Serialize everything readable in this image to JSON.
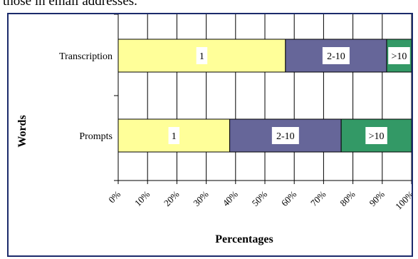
{
  "top_text": "those in email addresses.",
  "colors": {
    "frame": "#1b2a6b",
    "seg_1": "#ffff99",
    "seg_2_10": "#666699",
    "seg_gt10": "#339966"
  },
  "chart_data": {
    "type": "bar",
    "orientation": "horizontal",
    "stacked": true,
    "categories": [
      "Transcription",
      "Prompts"
    ],
    "series": [
      {
        "name": "1",
        "values": [
          57,
          38
        ]
      },
      {
        "name": "2-10",
        "values": [
          34.5,
          38
        ]
      },
      {
        "name": ">10",
        "values": [
          8.5,
          24
        ]
      }
    ],
    "title": "",
    "xlabel": "Percentages",
    "ylabel": "Words",
    "xlim": [
      0,
      100
    ],
    "xticks": [
      "0%",
      "10%",
      "20%",
      "30%",
      "40%",
      "50%",
      "60%",
      "70%",
      "80%",
      "90%",
      "100%"
    ],
    "grid": true,
    "legend": "none"
  }
}
